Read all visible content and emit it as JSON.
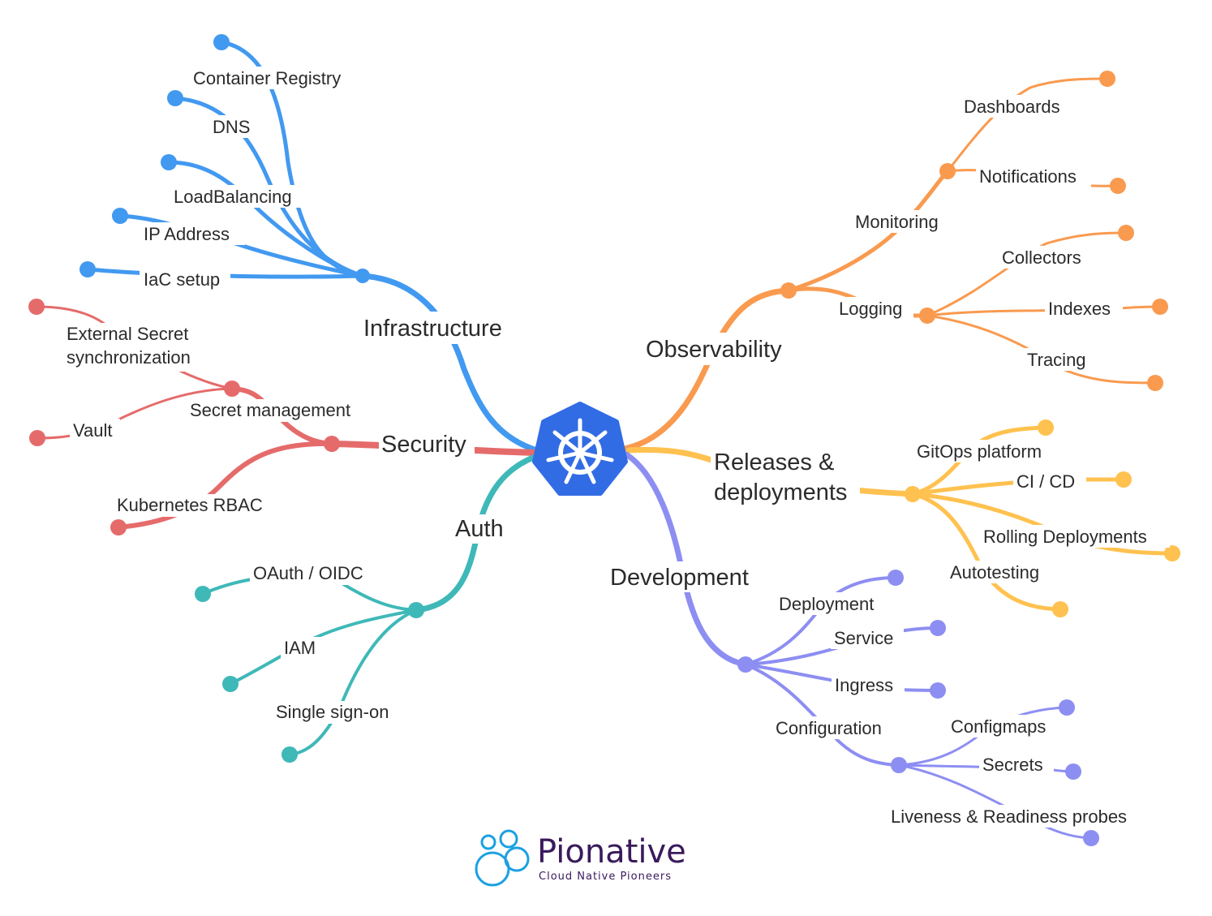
{
  "center": {
    "icon": "kubernetes-helm-icon"
  },
  "colors": {
    "infrastructure": "#4299f0",
    "security": "#e56b6b",
    "auth": "#3fb8b8",
    "observability": "#f99a4f",
    "releases": "#ffc14f",
    "development": "#8d8ef2",
    "center": "#326ce5"
  },
  "branches": {
    "infrastructure": {
      "label": "Infrastructure",
      "children": [
        "Container Registry",
        "DNS",
        "LoadBalancing",
        "IP Address",
        "IaC setup"
      ]
    },
    "security": {
      "label": "Security",
      "children": {
        "secret_management": "Secret management",
        "external_secret_line1": "External Secret",
        "external_secret_line2": "synchronization",
        "vault": "Vault",
        "rbac": "Kubernetes RBAC"
      }
    },
    "auth": {
      "label": "Auth",
      "children": [
        "OAuth / OIDC",
        "IAM",
        "Single sign-on"
      ]
    },
    "observability": {
      "label": "Observability",
      "monitoring": {
        "label": "Monitoring",
        "children": [
          "Dashboards",
          "Notifications"
        ]
      },
      "logging": {
        "label": "Logging",
        "children": [
          "Collectors",
          "Indexes",
          "Tracing"
        ]
      }
    },
    "releases": {
      "label_line1": "Releases &",
      "label_line2": "deployments",
      "children": [
        "GitOps platform",
        "CI / CD",
        "Rolling Deployments",
        "Autotesting"
      ]
    },
    "development": {
      "label": "Development",
      "children": [
        "Deployment",
        "Service",
        "Ingress"
      ],
      "configuration": {
        "label": "Configuration",
        "children": [
          "Configmaps",
          "Secrets",
          "Liveness & Readiness probes"
        ]
      }
    }
  },
  "brand": {
    "name": "Pionative",
    "tagline": "Cloud Native Pioneers",
    "logo": "bubbles-logo"
  }
}
